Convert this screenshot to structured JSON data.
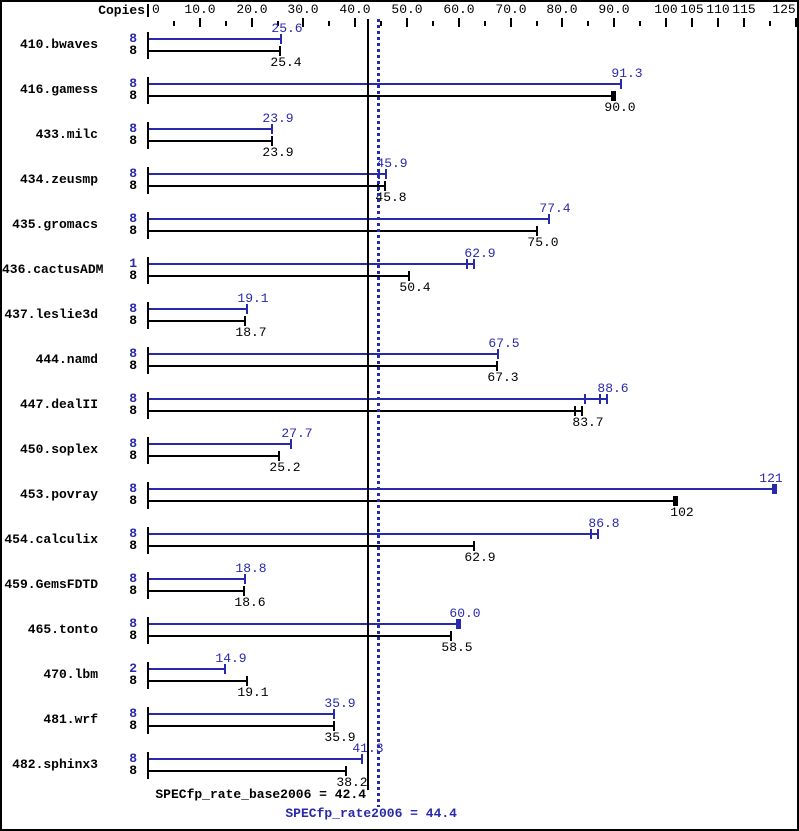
{
  "header": {
    "copies": "Copies"
  },
  "summary": {
    "base_label": "SPECfp_rate_base2006 = 42.4",
    "peak_label": "SPECfp_rate2006 = 44.4"
  },
  "colors": {
    "peak_blue": "#2929ad",
    "base_black": "#000000",
    "background": "#ffffff"
  },
  "chart_data": {
    "type": "bar",
    "orientation": "horizontal",
    "title": "",
    "xlabel": "",
    "ylabel": "Copies",
    "axis": {
      "min": 0,
      "max": 125,
      "labels": [
        {
          "value": 0,
          "text": "0"
        },
        {
          "value": 10,
          "text": "10.0"
        },
        {
          "value": 20,
          "text": "20.0"
        },
        {
          "value": 30,
          "text": "30.0"
        },
        {
          "value": 40,
          "text": "40.0"
        },
        {
          "value": 50,
          "text": "50.0"
        },
        {
          "value": 60,
          "text": "60.0"
        },
        {
          "value": 70,
          "text": "70.0"
        },
        {
          "value": 80,
          "text": "80.0"
        },
        {
          "value": 90,
          "text": "90.0"
        },
        {
          "value": 100,
          "text": "100"
        },
        {
          "value": 105,
          "text": "105"
        },
        {
          "value": 110,
          "text": "110"
        },
        {
          "value": 115,
          "text": "115"
        },
        {
          "value": 125,
          "text": "125"
        }
      ],
      "major_ticks": [
        10,
        20,
        30,
        40,
        50,
        60,
        70,
        80,
        90,
        100,
        105,
        110,
        115,
        125
      ],
      "minor_ticks": [
        5,
        15,
        25,
        35,
        45,
        55,
        65,
        75,
        85,
        95,
        120
      ]
    },
    "series_names": [
      "peak (blue)",
      "base (black)"
    ],
    "benchmarks": [
      {
        "name": "410.bwaves",
        "peak": {
          "copies": "8",
          "value": "25.6"
        },
        "base": {
          "copies": "8",
          "value": "25.4"
        }
      },
      {
        "name": "416.gamess",
        "peak": {
          "copies": "8",
          "value": "91.3"
        },
        "base": {
          "copies": "8",
          "value": "90.0",
          "thick": true
        }
      },
      {
        "name": "433.milc",
        "peak": {
          "copies": "8",
          "value": "23.9"
        },
        "base": {
          "copies": "8",
          "value": "23.9"
        }
      },
      {
        "name": "434.zeusmp",
        "peak": {
          "copies": "8",
          "value": "45.9",
          "run_ticks": [
            44.6
          ]
        },
        "base": {
          "copies": "8",
          "value": "45.8",
          "run_ticks": [
            44.4
          ]
        }
      },
      {
        "name": "435.gromacs",
        "peak": {
          "copies": "8",
          "value": "77.4"
        },
        "base": {
          "copies": "8",
          "value": "75.0"
        }
      },
      {
        "name": "436.cactusADM",
        "peak": {
          "copies": "1",
          "value": "62.9",
          "run_ticks": [
            61.6
          ]
        },
        "base": {
          "copies": "8",
          "value": "50.4"
        }
      },
      {
        "name": "437.leslie3d",
        "peak": {
          "copies": "8",
          "value": "19.1"
        },
        "base": {
          "copies": "8",
          "value": "18.7"
        }
      },
      {
        "name": "444.namd",
        "peak": {
          "copies": "8",
          "value": "67.5"
        },
        "base": {
          "copies": "8",
          "value": "67.3"
        }
      },
      {
        "name": "447.dealII",
        "peak": {
          "copies": "8",
          "value": "88.6",
          "run_ticks": [
            84.3,
            87.3
          ]
        },
        "base": {
          "copies": "8",
          "value": "83.7",
          "run_ticks": [
            82.4
          ]
        }
      },
      {
        "name": "450.soplex",
        "peak": {
          "copies": "8",
          "value": "27.7"
        },
        "base": {
          "copies": "8",
          "value": "25.2"
        }
      },
      {
        "name": "453.povray",
        "peak": {
          "copies": "8",
          "value": "121",
          "thick": true
        },
        "base": {
          "copies": "8",
          "value": "102",
          "thick": true
        }
      },
      {
        "name": "454.calculix",
        "peak": {
          "copies": "8",
          "value": "86.8",
          "run_ticks": [
            85.6
          ]
        },
        "base": {
          "copies": "8",
          "value": "62.9"
        }
      },
      {
        "name": "459.GemsFDTD",
        "peak": {
          "copies": "8",
          "value": "18.8"
        },
        "base": {
          "copies": "8",
          "value": "18.6"
        }
      },
      {
        "name": "465.tonto",
        "peak": {
          "copies": "8",
          "value": "60.0",
          "thick": true
        },
        "base": {
          "copies": "8",
          "value": "58.5"
        }
      },
      {
        "name": "470.lbm",
        "peak": {
          "copies": "2",
          "value": "14.9"
        },
        "base": {
          "copies": "8",
          "value": "19.1"
        }
      },
      {
        "name": "481.wrf",
        "peak": {
          "copies": "8",
          "value": "35.9"
        },
        "base": {
          "copies": "8",
          "value": "35.9"
        }
      },
      {
        "name": "482.sphinx3",
        "peak": {
          "copies": "8",
          "value": "41.3"
        },
        "base": {
          "copies": "8",
          "value": "38.2"
        }
      }
    ],
    "reference_lines": {
      "base": {
        "value": 42.4,
        "style": "solid",
        "color": "#000000"
      },
      "peak": {
        "value": 44.4,
        "style": "dotted",
        "color": "#2929ad"
      }
    },
    "legend_position": "none",
    "grid": false
  }
}
